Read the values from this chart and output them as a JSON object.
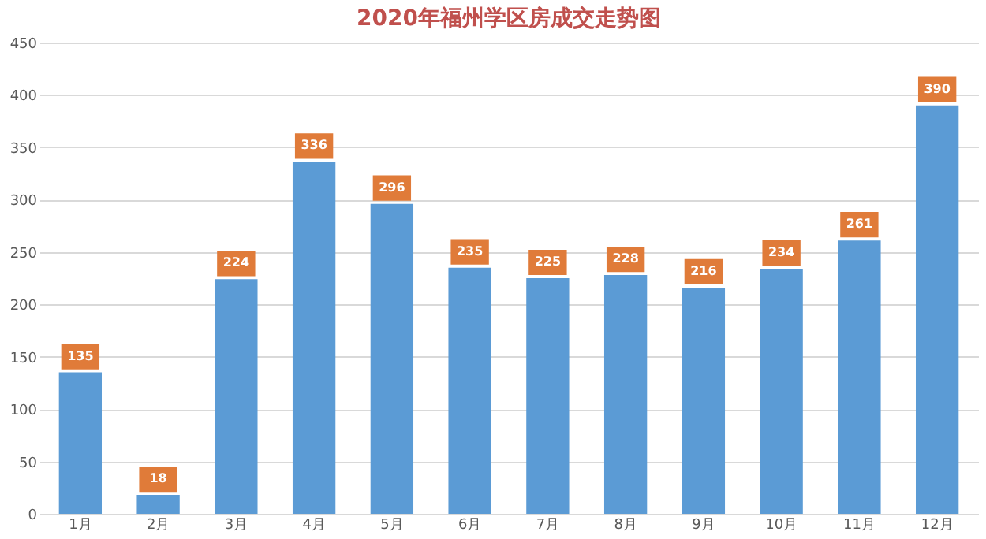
{
  "chart_data": {
    "type": "bar",
    "title": "2020年福州学区房成交走势图",
    "categories": [
      "1月",
      "2月",
      "3月",
      "4月",
      "5月",
      "6月",
      "7月",
      "8月",
      "9月",
      "10月",
      "11月",
      "12月"
    ],
    "values": [
      135,
      18,
      224,
      336,
      296,
      235,
      225,
      228,
      216,
      234,
      261,
      390
    ],
    "color": "#5b9bd5",
    "ylim": [
      0,
      450
    ],
    "yticks": [
      0,
      50,
      100,
      150,
      200,
      250,
      300,
      350,
      400,
      450
    ],
    "grid": "y",
    "data_labels": true
  }
}
